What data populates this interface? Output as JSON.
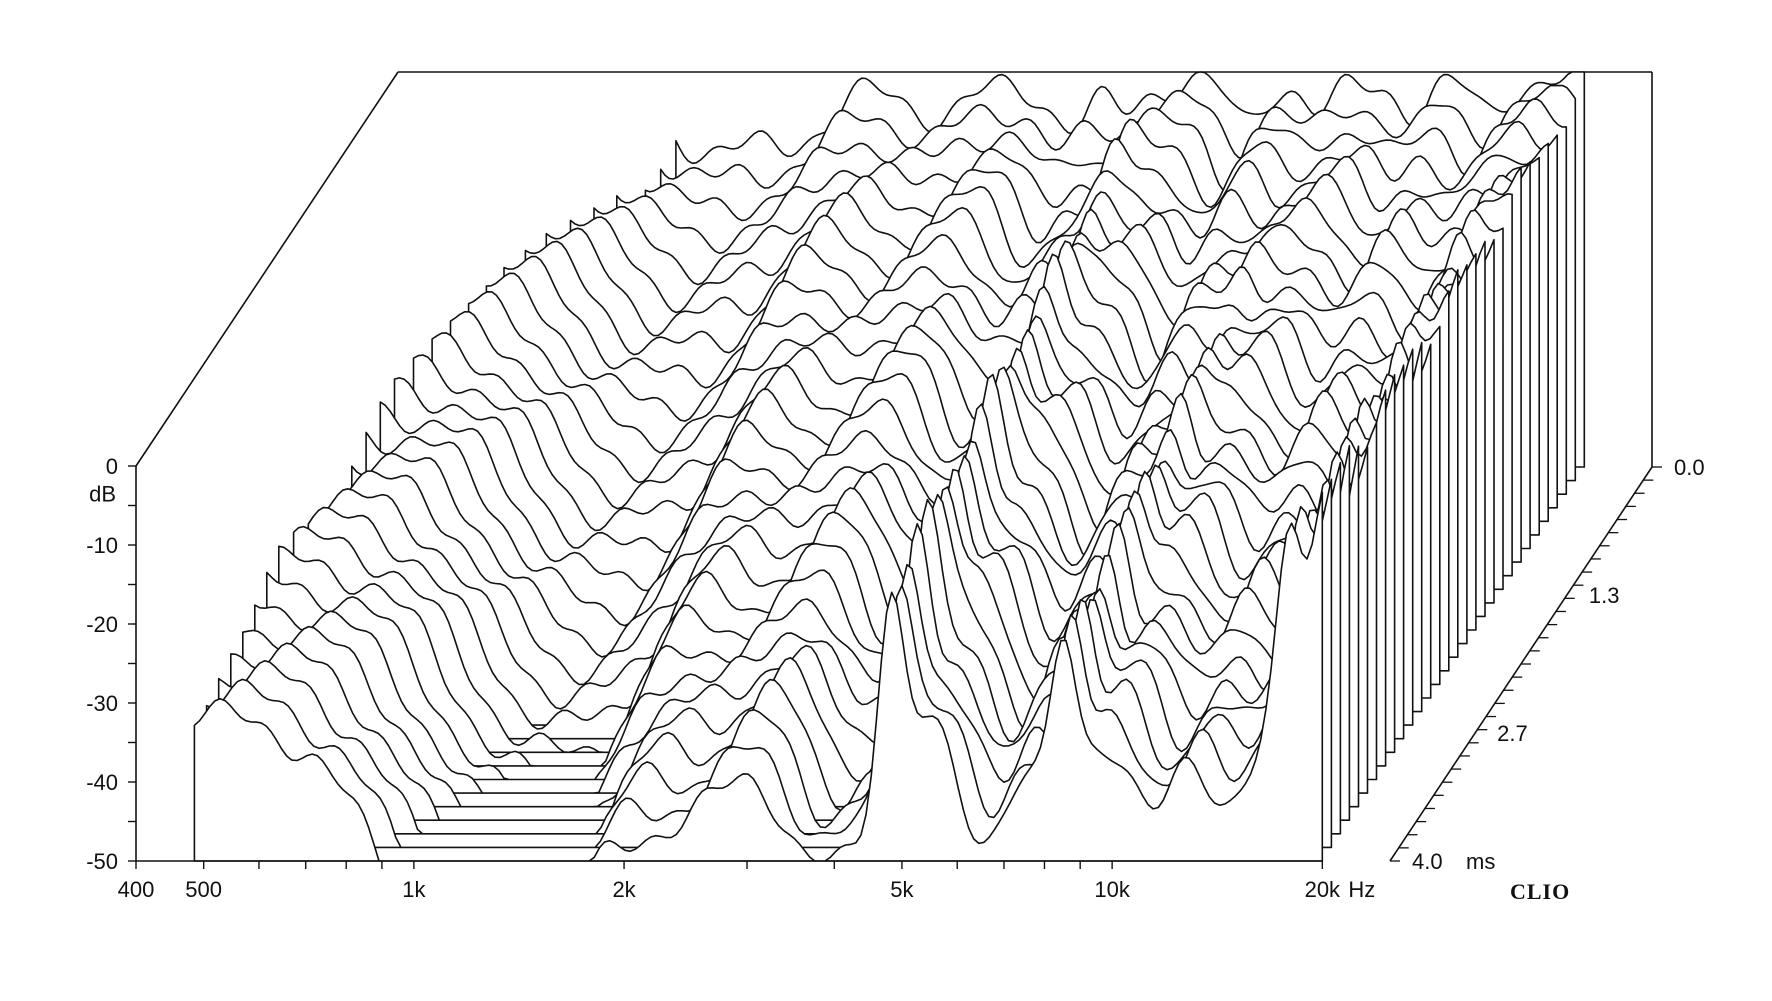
{
  "chart_data": {
    "type": "waterfall",
    "title": "",
    "brand": "CLIO",
    "x_axis": {
      "scale": "log",
      "range": [
        400,
        25000
      ],
      "tick_labels": [
        {
          "value": 400,
          "label": "400"
        },
        {
          "value": 500,
          "label": "500"
        },
        {
          "value": 1000,
          "label": "1k"
        },
        {
          "value": 2000,
          "label": "2k"
        },
        {
          "value": 5000,
          "label": "5k"
        },
        {
          "value": 10000,
          "label": "10k"
        },
        {
          "value": 20000,
          "label": "20k"
        }
      ],
      "unit": "Hz"
    },
    "y_axis": {
      "range": [
        -50,
        0
      ],
      "tick_labels": [
        {
          "value": 0,
          "label": "0"
        },
        {
          "value": -10,
          "label": "-10"
        },
        {
          "value": -20,
          "label": "-20"
        },
        {
          "value": -30,
          "label": "-30"
        },
        {
          "value": -40,
          "label": "-40"
        },
        {
          "value": -50,
          "label": "-50"
        }
      ],
      "unit": "dB"
    },
    "z_axis": {
      "range": [
        0.0,
        4.0
      ],
      "tick_labels": [
        {
          "value": 0.0,
          "label": "0.0"
        },
        {
          "value": 1.3,
          "label": "1.3"
        },
        {
          "value": 2.7,
          "label": "2.7"
        },
        {
          "value": 4.0,
          "label": "4.0"
        }
      ],
      "unit": "ms"
    },
    "slice_count": 30,
    "slice_start_freq_hz": [
      1000,
      980,
      960,
      900,
      860,
      820,
      780,
      750,
      720,
      700,
      680,
      660,
      640,
      620,
      600,
      590,
      580,
      570,
      560,
      550,
      540,
      530,
      520,
      515,
      510,
      505,
      500,
      495,
      490,
      485
    ],
    "response_features": [
      {
        "freq_hz": 1150,
        "depth_db": 22,
        "width": 0.1
      },
      {
        "freq_hz": 1550,
        "depth_db": 12,
        "width": 0.07
      },
      {
        "freq_hz": 2400,
        "depth_db": 10,
        "width": 0.06
      },
      {
        "freq_hz": 3700,
        "depth_db": 14,
        "width": 0.04
      },
      {
        "freq_hz": 4400,
        "depth_db": 8,
        "width": 0.03
      },
      {
        "freq_hz": 6500,
        "depth_db": 12,
        "width": 0.03
      },
      {
        "freq_hz": 8400,
        "depth_db": 10,
        "width": 0.03
      },
      {
        "freq_hz": 11500,
        "depth_db": 9,
        "width": 0.03
      },
      {
        "freq_hz": 14500,
        "depth_db": 8,
        "width": 0.03
      }
    ],
    "resonances": [
      {
        "freq_hz": 4800,
        "peak_db": 0
      },
      {
        "freq_hz": 8500,
        "peak_db": 0
      },
      {
        "freq_hz": 18000,
        "peak_db": 0
      },
      {
        "freq_hz": 20000,
        "peak_db": 0
      },
      {
        "freq_hz": 21500,
        "peak_db": 0
      }
    ],
    "grid": false,
    "legend": "none"
  }
}
